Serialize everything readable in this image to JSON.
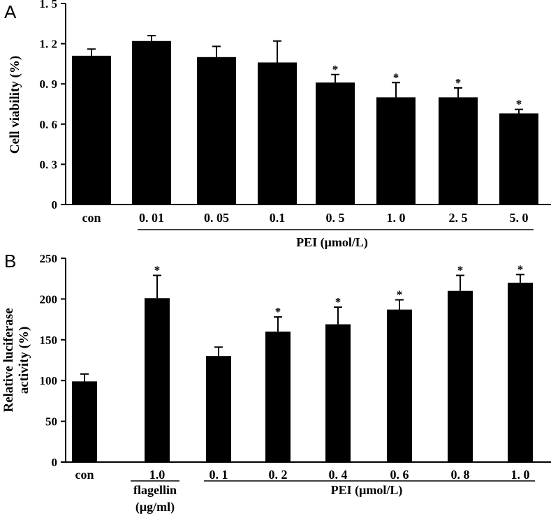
{
  "chart_data": [
    {
      "panel_label": "A",
      "type": "bar",
      "ylabel": "Cell viability (%)",
      "ylim": [
        0,
        1.5
      ],
      "yticks": [
        "0",
        "0. 3",
        "0. 6",
        "0. 9",
        "1. 2",
        "1. 5"
      ],
      "ytick_values": [
        0,
        0.3,
        0.6,
        0.9,
        1.2,
        1.5
      ],
      "categories": [
        "con",
        "0. 01",
        "0. 05",
        "0.1",
        "0. 5",
        "1. 0",
        "2. 5",
        "5. 0"
      ],
      "values": [
        1.11,
        1.22,
        1.1,
        1.06,
        0.91,
        0.8,
        0.8,
        0.68
      ],
      "errors": [
        0.05,
        0.04,
        0.08,
        0.16,
        0.06,
        0.11,
        0.07,
        0.03
      ],
      "significant": [
        false,
        false,
        false,
        false,
        true,
        true,
        true,
        true
      ],
      "asterisk": "*",
      "groups": [
        {
          "label": "PEI (μmol/L)",
          "from": 1,
          "to": 7
        }
      ],
      "bar_color": "#000000"
    },
    {
      "panel_label": "B",
      "type": "bar",
      "ylabel_lines": [
        "Relative luciferase",
        "activity (%)"
      ],
      "ylim": [
        0,
        250
      ],
      "yticks": [
        "0",
        "50",
        "100",
        "150",
        "200",
        "250"
      ],
      "ytick_values": [
        0,
        50,
        100,
        150,
        200,
        250
      ],
      "categories": [
        "con",
        "1.0",
        "0. 1",
        "0. 2",
        "0. 4",
        "0. 6",
        "0. 8",
        "1. 0"
      ],
      "values": [
        99,
        201,
        130,
        160,
        169,
        187,
        210,
        220
      ],
      "errors": [
        9,
        28,
        11,
        18,
        21,
        12,
        19,
        10
      ],
      "significant": [
        false,
        true,
        false,
        true,
        true,
        true,
        true,
        true
      ],
      "asterisk": "*",
      "groups": [
        {
          "label_lines": [
            "flagellin",
            "(μg/ml)"
          ],
          "from": 1,
          "to": 1
        },
        {
          "label": "PEI (μmol/L)",
          "from": 2,
          "to": 7
        }
      ],
      "bar_color": "#000000"
    }
  ]
}
